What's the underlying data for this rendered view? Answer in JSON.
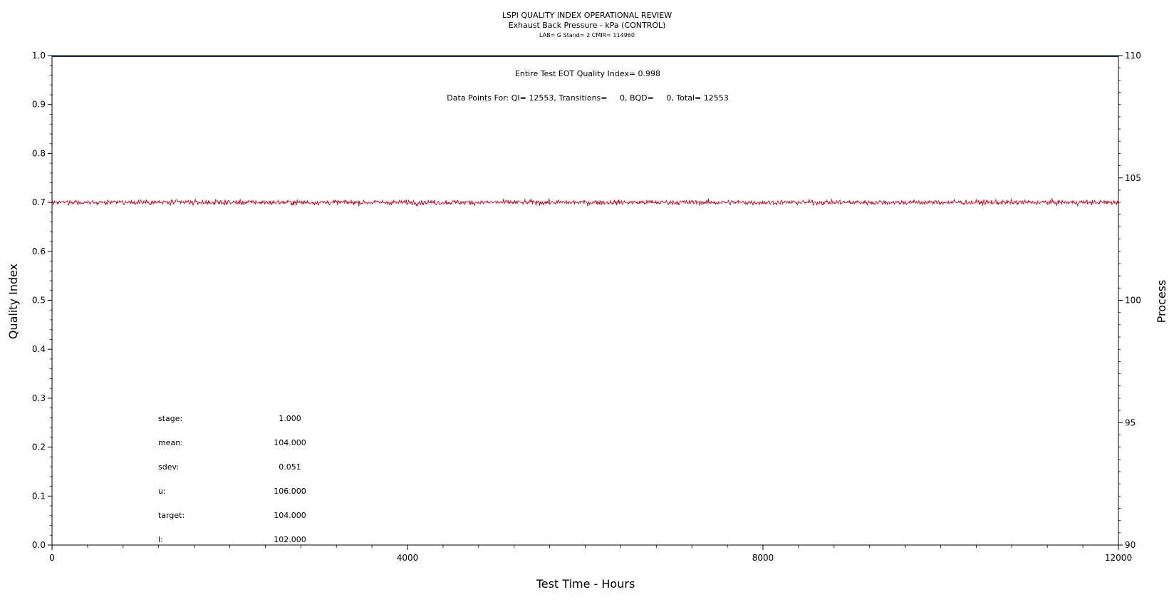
{
  "chart_data": {
    "type": "line",
    "title": "LSPI QUALITY INDEX OPERATIONAL REVIEW",
    "subtitle": "Exhaust Back Pressure - kPa (CONTROL)",
    "subtitle2": "LAB= G Stand= 2 CMIR= 114960",
    "xlabel": "Test Time - Hours",
    "ylabel_left": "Quality Index",
    "ylabel_right": "Process",
    "xlim": [
      0,
      12000
    ],
    "ylim_left": [
      0.0,
      1.0
    ],
    "ylim_right": [
      90,
      110
    ],
    "x_ticks": [
      {
        "value": 0,
        "label": "0"
      },
      {
        "value": 4000,
        "label": "4000"
      },
      {
        "value": 8000,
        "label": "8000"
      },
      {
        "value": 12000,
        "label": "12000"
      }
    ],
    "y_left_ticks": [
      {
        "value": 0.0,
        "label": "0.0"
      },
      {
        "value": 0.1,
        "label": "0.1"
      },
      {
        "value": 0.2,
        "label": "0.2"
      },
      {
        "value": 0.3,
        "label": "0.3"
      },
      {
        "value": 0.4,
        "label": "0.4"
      },
      {
        "value": 0.5,
        "label": "0.5"
      },
      {
        "value": 0.6,
        "label": "0.6"
      },
      {
        "value": 0.7,
        "label": "0.7"
      },
      {
        "value": 0.8,
        "label": "0.8"
      },
      {
        "value": 0.9,
        "label": "0.9"
      },
      {
        "value": 1.0,
        "label": "1.0"
      }
    ],
    "y_right_ticks": [
      {
        "value": 90,
        "label": "90"
      },
      {
        "value": 95,
        "label": "95"
      },
      {
        "value": 100,
        "label": "100"
      },
      {
        "value": 105,
        "label": "105"
      },
      {
        "value": 110,
        "label": "110"
      }
    ],
    "series": [
      {
        "axis": "left",
        "color": "#1a237e",
        "values_constant": 0.998,
        "x_range": [
          0,
          12000
        ]
      },
      {
        "axis": "right",
        "color": "#b0102a",
        "mean": 104.0,
        "sdev": 0.051,
        "x_range": [
          0,
          12000
        ],
        "points": 12553
      }
    ],
    "annotations": [
      "Entire Test EOT Quality Index=   0.998",
      "Data Points For: QI= 12553, Transitions=     0, BQD=     0, Total= 12553"
    ],
    "stats": [
      {
        "label": "stage:",
        "value": "1.000"
      },
      {
        "label": "mean:",
        "value": "104.000"
      },
      {
        "label": "sdev:",
        "value": "0.051"
      },
      {
        "label": "u:",
        "value": "106.000"
      },
      {
        "label": "target:",
        "value": "104.000"
      },
      {
        "label": "l:",
        "value": "102.000"
      }
    ],
    "grid": false
  }
}
